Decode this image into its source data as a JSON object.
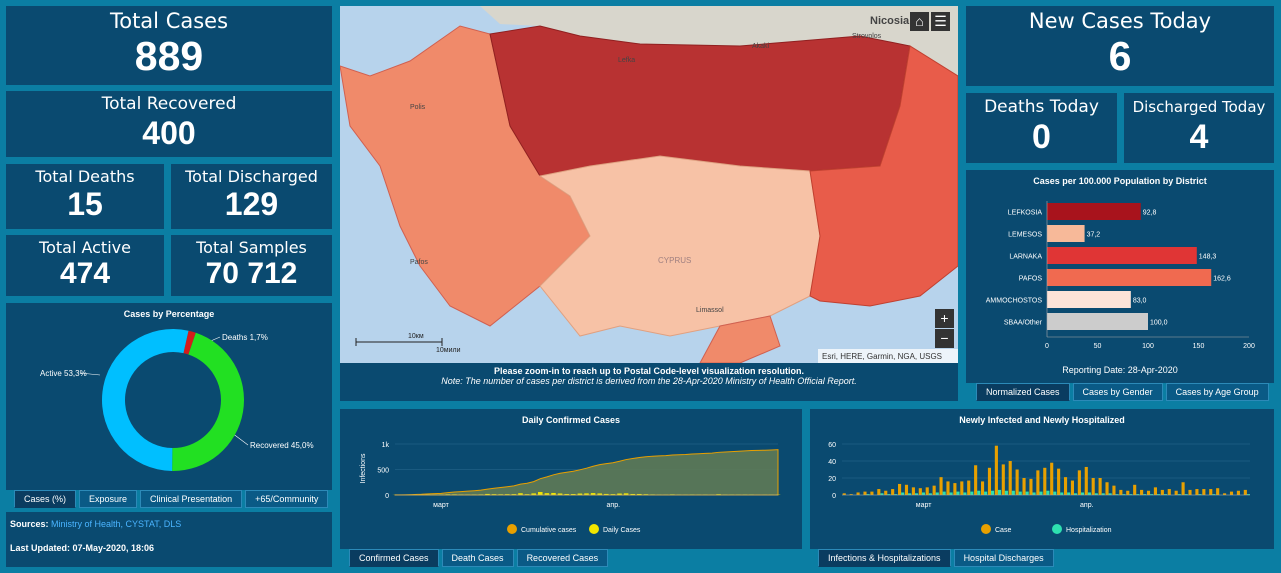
{
  "kpis": {
    "total_cases": {
      "label": "Total Cases",
      "value": "889"
    },
    "total_recovered": {
      "label": "Total Recovered",
      "value": "400"
    },
    "total_deaths": {
      "label": "Total Deaths",
      "value": "15"
    },
    "total_discharged": {
      "label": "Total Discharged",
      "value": "129"
    },
    "total_active": {
      "label": "Total Active",
      "value": "474"
    },
    "total_samples": {
      "label": "Total Samples",
      "value": "70 712"
    },
    "new_cases_today": {
      "label": "New Cases Today",
      "value": "6"
    },
    "deaths_today": {
      "label": "Deaths Today",
      "value": "0"
    },
    "discharged_today": {
      "label": "Discharged Today",
      "value": "4"
    }
  },
  "donut": {
    "title": "Cases by Percentage",
    "slices": [
      {
        "label": "Active 53,3%",
        "value": 53.3,
        "color": "#00bfff"
      },
      {
        "label": "Recovered 45,0%",
        "value": 45.0,
        "color": "#22e022"
      },
      {
        "label": "Deaths 1,7%",
        "value": 1.7,
        "color": "#d41c1c"
      }
    ]
  },
  "left_tabs": [
    "Cases (%)",
    "Exposure",
    "Clinical Presentation",
    "+65/Community"
  ],
  "sources": {
    "label": "Sources:",
    "value": "Ministry of Health, CYSTAT, DLS"
  },
  "last_updated": "Last Updated: 07-May-2020, 18:06",
  "map": {
    "place_labels": {
      "nicosia": "Nicosia",
      "akaki": "Akaki",
      "lefka": "Lefka",
      "strovolos": "Strovolos",
      "polis": "Polis",
      "pafos": "Pafos",
      "cyprus": "CYPRUS",
      "limassol": "Limassol"
    },
    "scale_km": "10км",
    "scale_mi": "10мили",
    "attribution": "Esri, HERE, Garmin, NGA, USGS",
    "zoom_in": "+",
    "zoom_out": "−",
    "note_bold": "Please zoom-in to reach up to Postal Code-level visualization resolution.",
    "note_italic_prefix": "Note:",
    "note_italic": " The number of cases per district is derived from the 28-Apr-2020 Ministry of Health Official Report.",
    "colors": {
      "dark": "#b83232",
      "mid": "#e85c4a",
      "light": "#f08a6a",
      "lightest": "#f7c2a6",
      "land": "#d8d6cc",
      "sea": "#b7d3ec"
    }
  },
  "district_chart": {
    "title": "Cases per 100.000 Population by District",
    "reporting_date": "Reporting Date: 28-Apr-2020",
    "chart_data": {
      "type": "bar",
      "orientation": "horizontal",
      "categories": [
        "LEFKOSIA",
        "LEMESOS",
        "LARNAKA",
        "PAFOS",
        "AMMOCHOSTOS",
        "SBAA/Other"
      ],
      "values": [
        92.8,
        37.2,
        148.3,
        162.6,
        83.0,
        100.0
      ],
      "value_labels": [
        "92,8",
        "37,2",
        "148,3",
        "162,6",
        "83,0",
        "100,0"
      ],
      "colors": [
        "#a8131c",
        "#f7b999",
        "#e03535",
        "#f06a50",
        "#fce3d8",
        "#cccccc"
      ],
      "xlim": [
        0,
        200
      ],
      "xticks": [
        "0",
        "50",
        "100",
        "150",
        "200"
      ]
    }
  },
  "right_tabs": [
    "Normalized Cases",
    "Cases by Gender",
    "Cases by Age Group"
  ],
  "daily_chart": {
    "title": "Daily Confirmed Cases",
    "chart_data": {
      "type": "area",
      "ylabel": "Infections",
      "yticks": [
        "0",
        "500",
        "1k"
      ],
      "ylim": [
        0,
        1000
      ],
      "xticks": [
        "март",
        "апр."
      ],
      "series": [
        {
          "name": "Cumulative cases",
          "color": "#e8a000",
          "values": [
            2,
            3,
            6,
            10,
            14,
            21,
            26,
            33,
            46,
            58,
            67,
            75,
            84,
            95,
            116,
            132,
            146,
            162,
            179,
            214,
            230,
            262,
            320,
            356,
            396,
            426,
            446,
            465,
            494,
            526,
            564,
            595,
            616,
            633,
            662,
            695,
            715,
            735,
            750,
            761,
            767,
            772,
            784,
            790,
            795,
            804,
            810,
            817,
            822,
            837,
            843,
            850,
            857,
            864,
            872,
            874,
            878,
            883,
            889
          ]
        },
        {
          "name": "Daily Cases",
          "color": "#f2e600",
          "values": [
            2,
            1,
            3,
            4,
            4,
            7,
            5,
            7,
            13,
            12,
            9,
            8,
            9,
            11,
            21,
            16,
            14,
            16,
            17,
            35,
            16,
            32,
            58,
            36,
            40,
            30,
            20,
            19,
            29,
            32,
            38,
            31,
            21,
            17,
            29,
            33,
            20,
            20,
            15,
            11,
            6,
            5,
            12,
            6,
            5,
            9,
            6,
            7,
            5,
            15,
            6,
            7,
            7,
            7,
            8,
            2,
            4,
            5,
            6
          ]
        }
      ]
    },
    "tabs": [
      "Confirmed Cases",
      "Death Cases",
      "Recovered Cases"
    ]
  },
  "hosp_chart": {
    "title": "Newly Infected and Newly Hospitalized",
    "chart_data": {
      "type": "bar",
      "yticks": [
        "0",
        "20",
        "40",
        "60"
      ],
      "ylim": [
        0,
        60
      ],
      "xticks": [
        "март",
        "апр."
      ],
      "series": [
        {
          "name": "Case",
          "color": "#e8a000",
          "values": [
            2,
            1,
            3,
            4,
            4,
            7,
            5,
            7,
            13,
            12,
            9,
            8,
            9,
            11,
            21,
            16,
            14,
            16,
            17,
            35,
            16,
            32,
            58,
            36,
            40,
            30,
            20,
            19,
            29,
            32,
            38,
            31,
            21,
            17,
            29,
            33,
            20,
            20,
            15,
            11,
            6,
            5,
            12,
            6,
            5,
            9,
            6,
            7,
            5,
            15,
            6,
            7,
            7,
            7,
            8,
            2,
            4,
            5,
            6
          ]
        },
        {
          "name": "Hospitalization",
          "color": "#2ee0b0",
          "values": [
            0,
            0,
            0,
            1,
            0,
            2,
            1,
            1,
            3,
            2,
            2,
            3,
            2,
            3,
            4,
            3,
            4,
            3,
            4,
            5,
            4,
            5,
            6,
            5,
            5,
            4,
            4,
            3,
            4,
            5,
            4,
            3,
            3,
            2,
            3,
            3,
            2,
            2,
            2,
            1,
            1,
            1,
            1,
            1,
            1,
            1,
            1,
            0,
            1,
            1,
            0,
            1,
            0,
            1,
            0,
            0,
            0,
            0,
            1
          ]
        }
      ]
    },
    "tabs": [
      "Infections & Hospitalizations",
      "Hospital Discharges"
    ]
  }
}
